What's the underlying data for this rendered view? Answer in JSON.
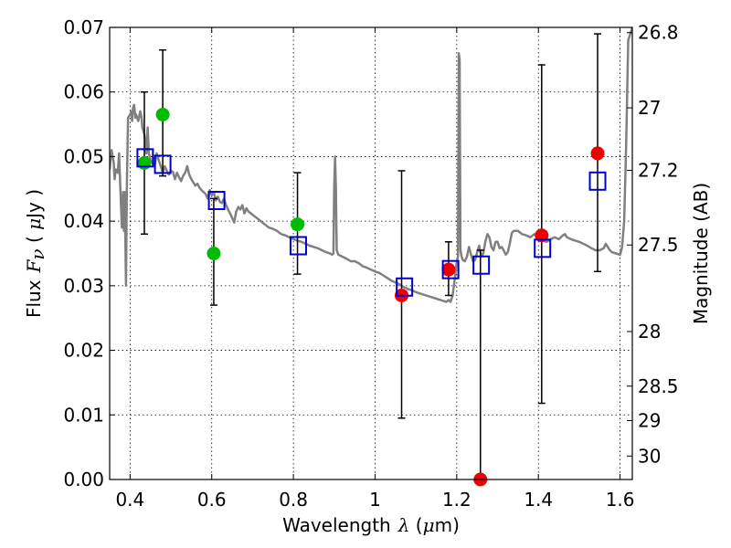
{
  "chart_data": {
    "type": "scatter",
    "xlabel": {
      "text": "Wavelength",
      "symbol": "λ",
      "unit_open": " (",
      "unit_mu": "μ",
      "unit_rest": "m)"
    },
    "ylabel": {
      "text": "Flux",
      "symbol": "F",
      "symbol_sub": "ν",
      "unit_open": " ( ",
      "unit_mu": "μ",
      "unit_rest": "Jy )"
    },
    "y2label": "Magnitude (AB)",
    "xlim": [
      0.35,
      1.63
    ],
    "ylim": [
      0.0,
      0.07
    ],
    "grid": true,
    "x_ticks": [
      {
        "v": 0.4,
        "label": "0.4"
      },
      {
        "v": 0.6,
        "label": "0.6"
      },
      {
        "v": 0.8,
        "label": "0.8"
      },
      {
        "v": 1.0,
        "label": "1"
      },
      {
        "v": 1.2,
        "label": "1.2"
      },
      {
        "v": 1.4,
        "label": "1.4"
      },
      {
        "v": 1.6,
        "label": "1.6"
      }
    ],
    "y_ticks": [
      {
        "v": 0.0,
        "label": "0.00"
      },
      {
        "v": 0.01,
        "label": "0.01"
      },
      {
        "v": 0.02,
        "label": "0.02"
      },
      {
        "v": 0.03,
        "label": "0.03"
      },
      {
        "v": 0.04,
        "label": "0.04"
      },
      {
        "v": 0.05,
        "label": "0.05"
      },
      {
        "v": 0.06,
        "label": "0.06"
      },
      {
        "v": 0.07,
        "label": "0.07"
      }
    ],
    "y2_ticks": [
      {
        "mag": 26.8,
        "label": "26.8"
      },
      {
        "mag": 27.0,
        "label": "27"
      },
      {
        "mag": 27.2,
        "label": "27.2"
      },
      {
        "mag": 27.5,
        "label": "27.5"
      },
      {
        "mag": 28.0,
        "label": "28"
      },
      {
        "mag": 28.5,
        "label": "28.5"
      },
      {
        "mag": 29.0,
        "label": "29"
      },
      {
        "mag": 30.0,
        "label": "30"
      }
    ],
    "colors": {
      "model": "#808080",
      "green": "#00bb00",
      "red": "#ee0000",
      "box": "#0000cc",
      "err": "#000000"
    },
    "series": [
      {
        "name": "model_sed",
        "style": "line",
        "points": [
          [
            0.35,
            0.048
          ],
          [
            0.355,
            0.051
          ],
          [
            0.36,
            0.049
          ],
          [
            0.362,
            0.0465
          ],
          [
            0.365,
            0.048
          ],
          [
            0.37,
            0.0475
          ],
          [
            0.373,
            0.0505
          ],
          [
            0.376,
            0.0455
          ],
          [
            0.38,
            0.039
          ],
          [
            0.383,
            0.0445
          ],
          [
            0.385,
            0.0385
          ],
          [
            0.387,
            0.0445
          ],
          [
            0.39,
            0.03
          ],
          [
            0.392,
            0.045
          ],
          [
            0.395,
            0.056
          ],
          [
            0.4,
            0.0565
          ],
          [
            0.403,
            0.057
          ],
          [
            0.405,
            0.0555
          ],
          [
            0.407,
            0.0575
          ],
          [
            0.41,
            0.058
          ],
          [
            0.413,
            0.056
          ],
          [
            0.415,
            0.0565
          ],
          [
            0.42,
            0.0555
          ],
          [
            0.425,
            0.057
          ],
          [
            0.428,
            0.056
          ],
          [
            0.43,
            0.0545
          ],
          [
            0.435,
            0.0535
          ],
          [
            0.44,
            0.0505
          ],
          [
            0.443,
            0.0545
          ],
          [
            0.446,
            0.0505
          ],
          [
            0.45,
            0.0495
          ],
          [
            0.455,
            0.049
          ],
          [
            0.46,
            0.0485
          ],
          [
            0.465,
            0.0505
          ],
          [
            0.47,
            0.0495
          ],
          [
            0.475,
            0.0485
          ],
          [
            0.48,
            0.0475
          ],
          [
            0.485,
            0.0485
          ],
          [
            0.49,
            0.0478
          ],
          [
            0.495,
            0.0472
          ],
          [
            0.5,
            0.0478
          ],
          [
            0.505,
            0.0476
          ],
          [
            0.51,
            0.0465
          ],
          [
            0.515,
            0.0475
          ],
          [
            0.52,
            0.0468
          ],
          [
            0.525,
            0.0462
          ],
          [
            0.53,
            0.047
          ],
          [
            0.535,
            0.0475
          ],
          [
            0.54,
            0.0485
          ],
          [
            0.545,
            0.0472
          ],
          [
            0.55,
            0.0465
          ],
          [
            0.555,
            0.046
          ],
          [
            0.56,
            0.0455
          ],
          [
            0.565,
            0.0458
          ],
          [
            0.57,
            0.0452
          ],
          [
            0.575,
            0.0448
          ],
          [
            0.58,
            0.0445
          ],
          [
            0.585,
            0.0442
          ],
          [
            0.59,
            0.0435
          ],
          [
            0.595,
            0.0448
          ],
          [
            0.6,
            0.044
          ],
          [
            0.605,
            0.0445
          ],
          [
            0.61,
            0.0432
          ],
          [
            0.615,
            0.0438
          ],
          [
            0.62,
            0.043
          ],
          [
            0.625,
            0.0428
          ],
          [
            0.63,
            0.0435
          ],
          [
            0.635,
            0.0425
          ],
          [
            0.64,
            0.0418
          ],
          [
            0.645,
            0.0412
          ],
          [
            0.65,
            0.0405
          ],
          [
            0.655,
            0.0398
          ],
          [
            0.66,
            0.0415
          ],
          [
            0.665,
            0.0422
          ],
          [
            0.67,
            0.0418
          ],
          [
            0.675,
            0.0425
          ],
          [
            0.68,
            0.0412
          ],
          [
            0.685,
            0.042
          ],
          [
            0.69,
            0.0415
          ],
          [
            0.7,
            0.041
          ],
          [
            0.71,
            0.0405
          ],
          [
            0.72,
            0.04
          ],
          [
            0.73,
            0.0395
          ],
          [
            0.74,
            0.039
          ],
          [
            0.75,
            0.0388
          ],
          [
            0.76,
            0.0385
          ],
          [
            0.77,
            0.038
          ],
          [
            0.78,
            0.0378
          ],
          [
            0.79,
            0.0375
          ],
          [
            0.8,
            0.0372
          ],
          [
            0.81,
            0.037
          ],
          [
            0.82,
            0.0368
          ],
          [
            0.83,
            0.0365
          ],
          [
            0.84,
            0.0362
          ],
          [
            0.85,
            0.036
          ],
          [
            0.86,
            0.0358
          ],
          [
            0.87,
            0.0355
          ],
          [
            0.88,
            0.0352
          ],
          [
            0.89,
            0.035
          ],
          [
            0.895,
            0.0348
          ],
          [
            0.898,
            0.035
          ],
          [
            0.9,
            0.0455
          ],
          [
            0.902,
            0.05
          ],
          [
            0.904,
            0.045
          ],
          [
            0.906,
            0.0355
          ],
          [
            0.91,
            0.0348
          ],
          [
            0.92,
            0.0345
          ],
          [
            0.93,
            0.0342
          ],
          [
            0.94,
            0.0338
          ],
          [
            0.95,
            0.0338
          ],
          [
            0.96,
            0.0335
          ],
          [
            0.97,
            0.033
          ],
          [
            0.98,
            0.0328
          ],
          [
            0.99,
            0.0325
          ],
          [
            1.0,
            0.0322
          ],
          [
            1.01,
            0.032
          ],
          [
            1.02,
            0.0316
          ],
          [
            1.03,
            0.0312
          ],
          [
            1.04,
            0.0308
          ],
          [
            1.05,
            0.0305
          ],
          [
            1.06,
            0.0302
          ],
          [
            1.07,
            0.0298
          ],
          [
            1.08,
            0.0295
          ],
          [
            1.09,
            0.0293
          ],
          [
            1.1,
            0.029
          ],
          [
            1.11,
            0.0288
          ],
          [
            1.12,
            0.0286
          ],
          [
            1.13,
            0.0284
          ],
          [
            1.14,
            0.0282
          ],
          [
            1.15,
            0.028
          ],
          [
            1.16,
            0.0278
          ],
          [
            1.17,
            0.0276
          ],
          [
            1.175,
            0.0275
          ],
          [
            1.18,
            0.0278
          ],
          [
            1.185,
            0.0275
          ],
          [
            1.19,
            0.0285
          ],
          [
            1.195,
            0.031
          ],
          [
            1.2,
            0.0335
          ],
          [
            1.203,
            0.0345
          ],
          [
            1.205,
            0.066
          ],
          [
            1.207,
            0.065
          ],
          [
            1.209,
            0.0355
          ],
          [
            1.212,
            0.0345
          ],
          [
            1.215,
            0.034
          ],
          [
            1.22,
            0.0338
          ],
          [
            1.225,
            0.0345
          ],
          [
            1.23,
            0.036
          ],
          [
            1.235,
            0.0348
          ],
          [
            1.24,
            0.0338
          ],
          [
            1.245,
            0.034
          ],
          [
            1.25,
            0.0352
          ],
          [
            1.255,
            0.0362
          ],
          [
            1.26,
            0.0345
          ],
          [
            1.265,
            0.035
          ],
          [
            1.27,
            0.0368
          ],
          [
            1.275,
            0.038
          ],
          [
            1.28,
            0.0375
          ],
          [
            1.285,
            0.036
          ],
          [
            1.29,
            0.0355
          ],
          [
            1.295,
            0.0368
          ],
          [
            1.3,
            0.0368
          ],
          [
            1.305,
            0.0358
          ],
          [
            1.31,
            0.036
          ],
          [
            1.315,
            0.0355
          ],
          [
            1.32,
            0.0348
          ],
          [
            1.325,
            0.0352
          ],
          [
            1.33,
            0.0365
          ],
          [
            1.335,
            0.0382
          ],
          [
            1.34,
            0.0385
          ],
          [
            1.35,
            0.0385
          ],
          [
            1.36,
            0.038
          ],
          [
            1.37,
            0.0378
          ],
          [
            1.38,
            0.0375
          ],
          [
            1.39,
            0.038
          ],
          [
            1.4,
            0.0375
          ],
          [
            1.41,
            0.0372
          ],
          [
            1.42,
            0.0368
          ],
          [
            1.43,
            0.0372
          ],
          [
            1.44,
            0.0375
          ],
          [
            1.45,
            0.0372
          ],
          [
            1.46,
            0.0378
          ],
          [
            1.465,
            0.038
          ],
          [
            1.47,
            0.0375
          ],
          [
            1.48,
            0.0372
          ],
          [
            1.49,
            0.037
          ],
          [
            1.5,
            0.0368
          ],
          [
            1.51,
            0.0365
          ],
          [
            1.52,
            0.0362
          ],
          [
            1.53,
            0.0358
          ],
          [
            1.54,
            0.0355
          ],
          [
            1.55,
            0.0355
          ],
          [
            1.56,
            0.0358
          ],
          [
            1.565,
            0.0365
          ],
          [
            1.57,
            0.036
          ],
          [
            1.575,
            0.0355
          ],
          [
            1.58,
            0.0352
          ],
          [
            1.59,
            0.035
          ],
          [
            1.6,
            0.0348
          ],
          [
            1.605,
            0.036
          ],
          [
            1.61,
            0.04
          ],
          [
            1.615,
            0.052
          ],
          [
            1.62,
            0.068
          ],
          [
            1.63,
            0.07
          ]
        ]
      },
      {
        "name": "observed_green",
        "style": "markers",
        "points": [
          {
            "x": 0.435,
            "y": 0.049,
            "yerr_lo": 0.038,
            "yerr_hi": 0.06
          },
          {
            "x": 0.48,
            "y": 0.0565,
            "yerr_lo": 0.047,
            "yerr_hi": 0.0665
          },
          {
            "x": 0.605,
            "y": 0.035,
            "yerr_lo": 0.027,
            "yerr_hi": 0.0435
          },
          {
            "x": 0.81,
            "y": 0.0395,
            "yerr_lo": 0.0318,
            "yerr_hi": 0.0475
          }
        ]
      },
      {
        "name": "observed_red",
        "style": "markers",
        "points": [
          {
            "x": 1.065,
            "y": 0.0285,
            "yerr_lo": 0.0095,
            "yerr_hi": 0.0478
          },
          {
            "x": 1.18,
            "y": 0.0325,
            "yerr_lo": 0.0285,
            "yerr_hi": 0.0368
          },
          {
            "x": 1.258,
            "y": 0.0,
            "yerr_lo": 0.0,
            "yerr_hi": 0.0355
          },
          {
            "x": 1.408,
            "y": 0.0378,
            "yerr_lo": 0.0118,
            "yerr_hi": 0.0642
          },
          {
            "x": 1.545,
            "y": 0.0505,
            "yerr_lo": 0.0322,
            "yerr_hi": 0.069
          }
        ]
      },
      {
        "name": "model_synthetic",
        "style": "open-squares",
        "points": [
          {
            "x": 0.437,
            "y": 0.0498
          },
          {
            "x": 0.48,
            "y": 0.0488
          },
          {
            "x": 0.612,
            "y": 0.0432
          },
          {
            "x": 0.812,
            "y": 0.0362
          },
          {
            "x": 1.072,
            "y": 0.0298
          },
          {
            "x": 1.185,
            "y": 0.0325
          },
          {
            "x": 1.26,
            "y": 0.0332
          },
          {
            "x": 1.41,
            "y": 0.0358
          },
          {
            "x": 1.545,
            "y": 0.0462
          }
        ]
      }
    ]
  }
}
